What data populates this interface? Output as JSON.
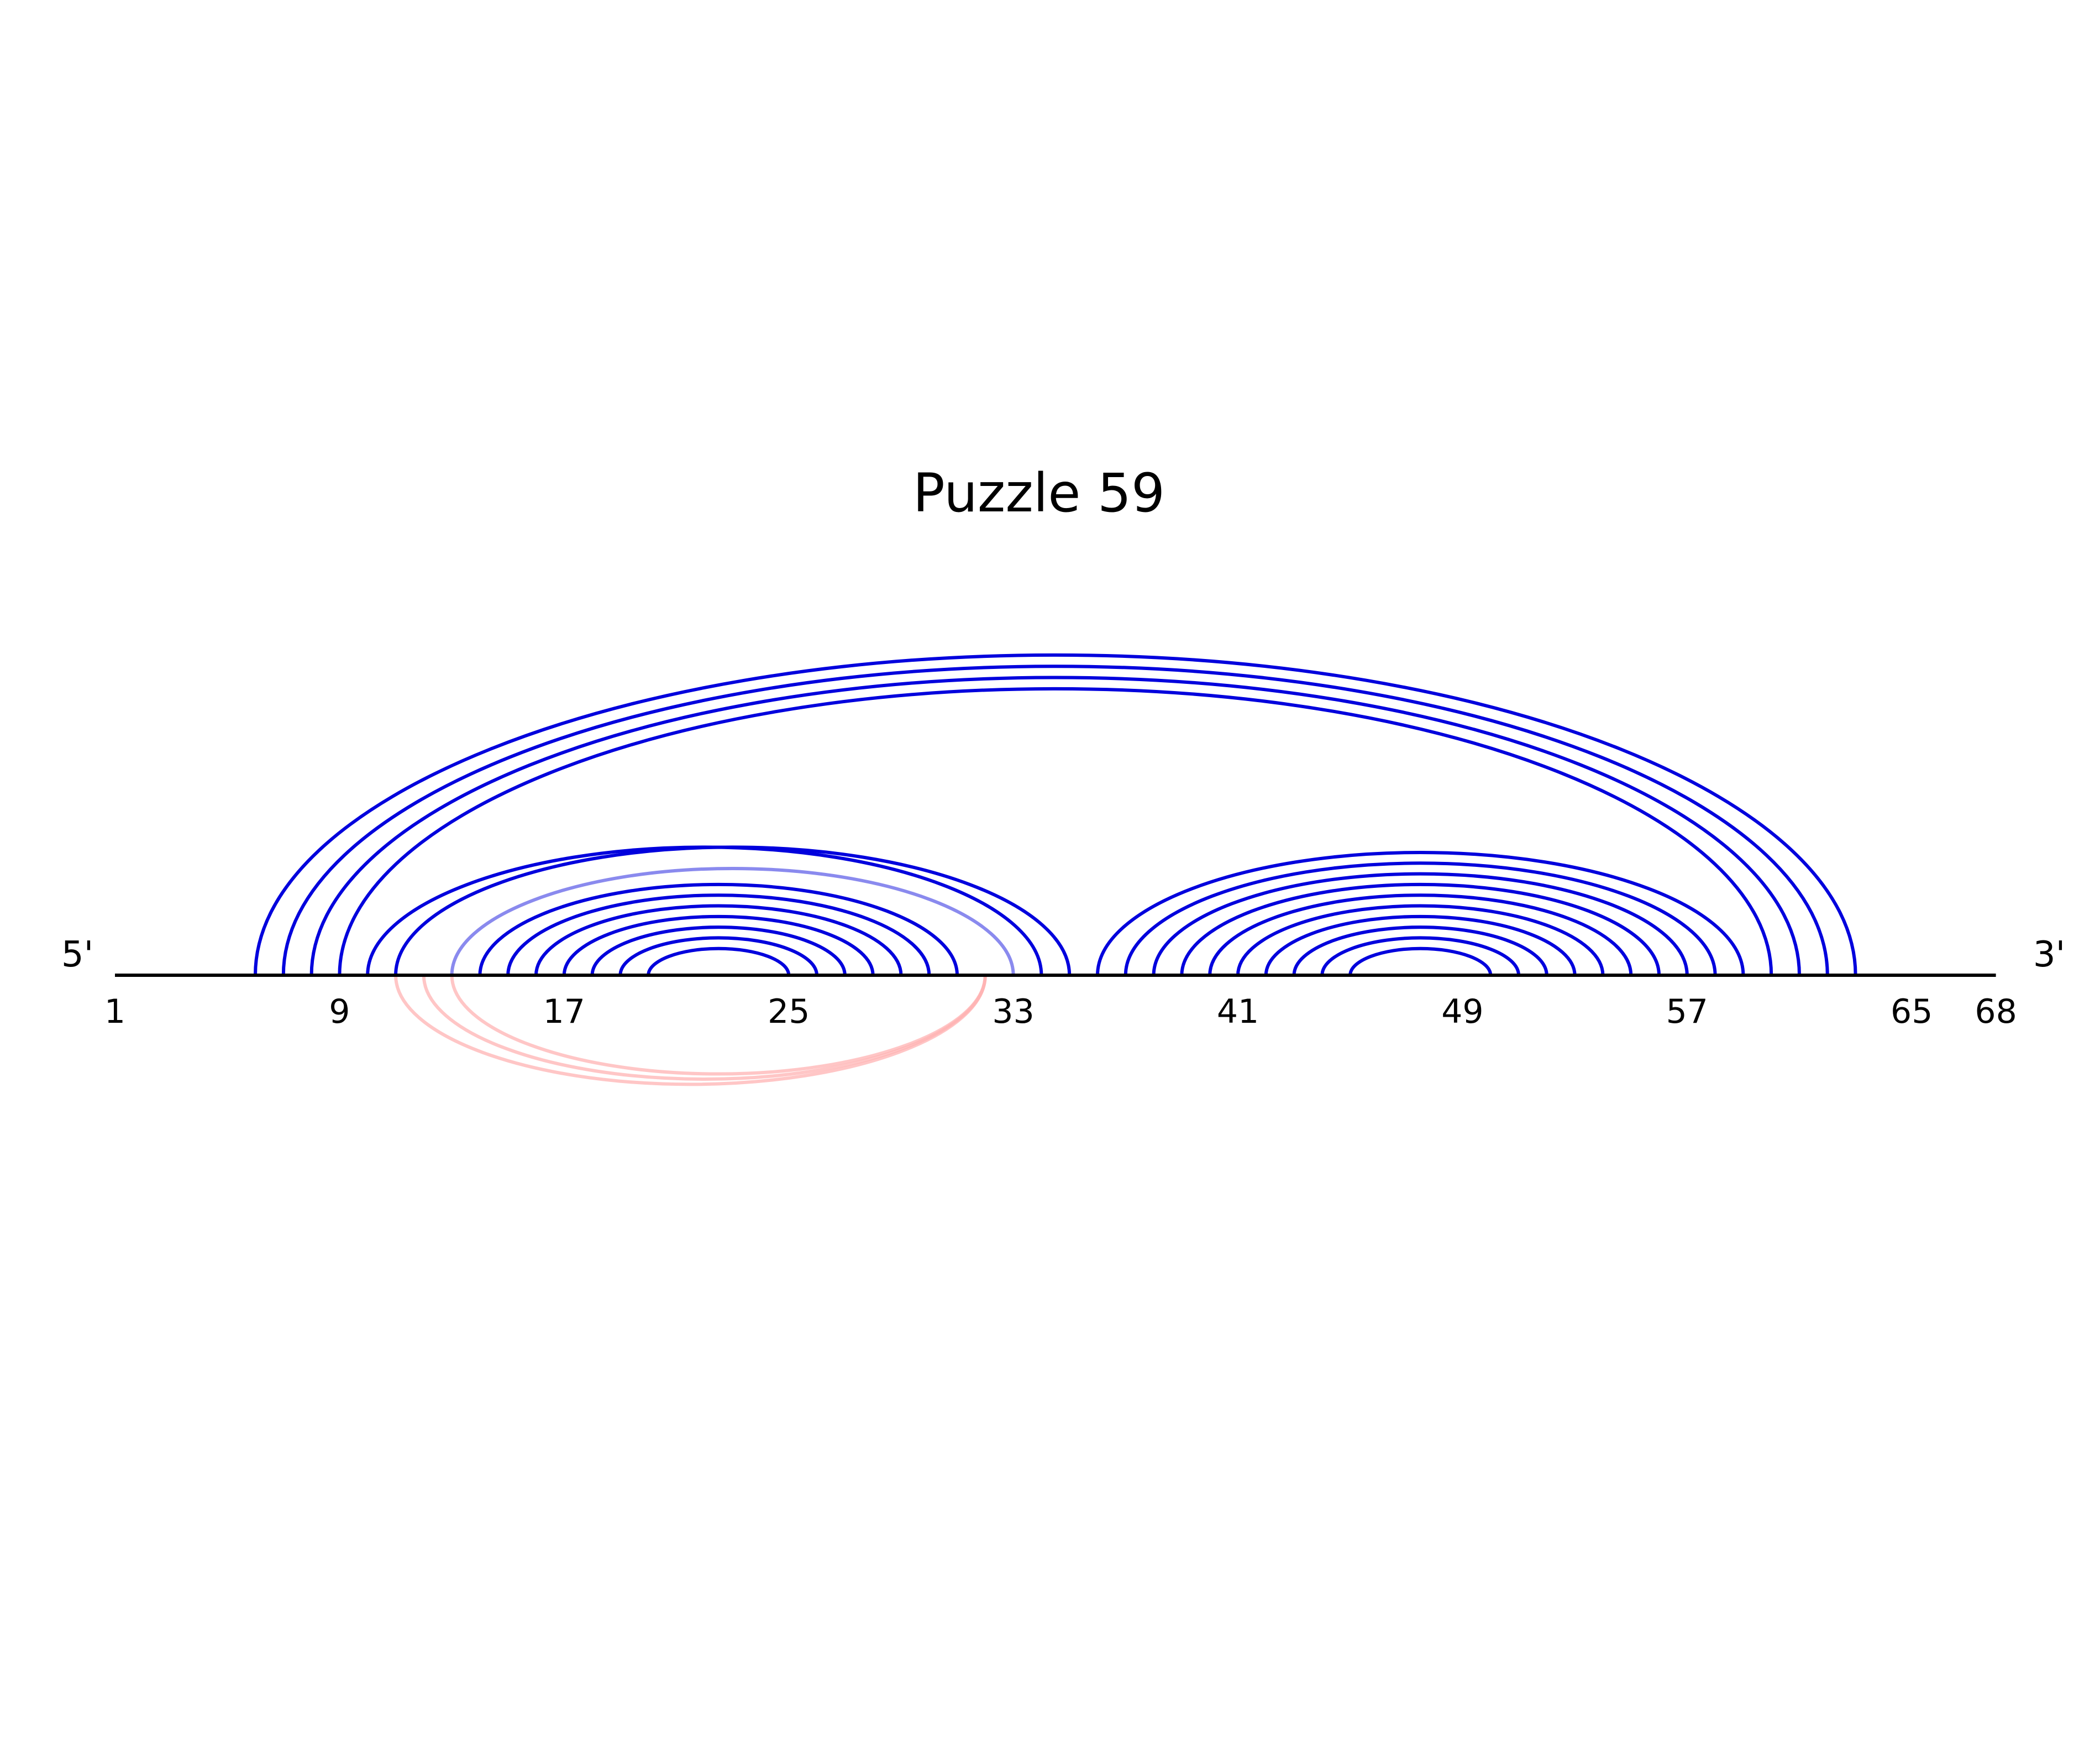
{
  "title": "Puzzle 59",
  "ends": {
    "five_prime": "5'",
    "three_prime": "3'"
  },
  "sequence_length": 68,
  "tick_labels": [
    {
      "pos": 1,
      "text": "1"
    },
    {
      "pos": 9,
      "text": "9"
    },
    {
      "pos": 17,
      "text": "17"
    },
    {
      "pos": 25,
      "text": "25"
    },
    {
      "pos": 33,
      "text": "33"
    },
    {
      "pos": 41,
      "text": "41"
    },
    {
      "pos": 49,
      "text": "49"
    },
    {
      "pos": 57,
      "text": "57"
    },
    {
      "pos": 65,
      "text": "65"
    },
    {
      "pos": 68,
      "text": "68"
    }
  ],
  "colors": {
    "backbone": "#000000",
    "pair": "#0000dd",
    "pair_faded": "#8a8aee",
    "pair_lower": "#ffb3b3"
  },
  "upper_arcs": [
    {
      "i": 6,
      "j": 63,
      "color": "pair"
    },
    {
      "i": 7,
      "j": 62,
      "color": "pair"
    },
    {
      "i": 8,
      "j": 61,
      "color": "pair"
    },
    {
      "i": 9,
      "j": 60,
      "color": "pair"
    },
    {
      "i": 10,
      "j": 34,
      "color": "pair"
    },
    {
      "i": 11,
      "j": 35,
      "color": "pair"
    },
    {
      "i": 13,
      "j": 33,
      "color": "pair_faded"
    },
    {
      "i": 14,
      "j": 31,
      "color": "pair"
    },
    {
      "i": 15,
      "j": 30,
      "color": "pair"
    },
    {
      "i": 16,
      "j": 29,
      "color": "pair"
    },
    {
      "i": 17,
      "j": 28,
      "color": "pair"
    },
    {
      "i": 18,
      "j": 27,
      "color": "pair"
    },
    {
      "i": 19,
      "j": 26,
      "color": "pair"
    },
    {
      "i": 20,
      "j": 25,
      "color": "pair"
    },
    {
      "i": 36,
      "j": 59,
      "color": "pair"
    },
    {
      "i": 37,
      "j": 58,
      "color": "pair"
    },
    {
      "i": 38,
      "j": 57,
      "color": "pair"
    },
    {
      "i": 39,
      "j": 56,
      "color": "pair"
    },
    {
      "i": 40,
      "j": 55,
      "color": "pair"
    },
    {
      "i": 41,
      "j": 54,
      "color": "pair"
    },
    {
      "i": 42,
      "j": 53,
      "color": "pair"
    },
    {
      "i": 43,
      "j": 52,
      "color": "pair"
    },
    {
      "i": 44,
      "j": 51,
      "color": "pair"
    },
    {
      "i": 45,
      "j": 50,
      "color": "pair"
    }
  ],
  "lower_arcs": [
    {
      "i": 11,
      "j": 32,
      "color": "pair_lower"
    },
    {
      "i": 12,
      "j": 32,
      "color": "pair_lower"
    },
    {
      "i": 13,
      "j": 32,
      "color": "pair_lower"
    }
  ]
}
